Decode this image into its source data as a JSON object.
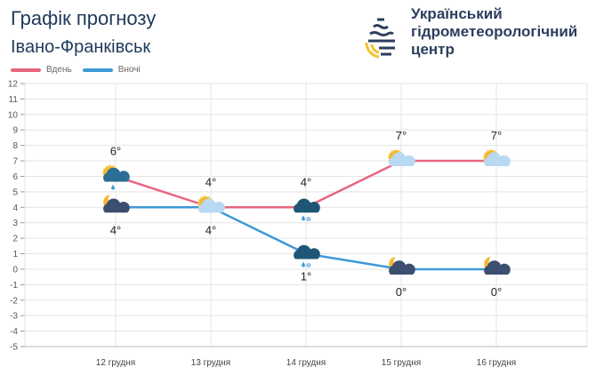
{
  "header": {
    "title": "Графік прогнозу",
    "city": "Івано-Франківськ"
  },
  "organization": {
    "line1": "Український",
    "line2": "гідрометеорологічний",
    "line3": "центр"
  },
  "colors": {
    "day": "#e8657f",
    "night": "#3d9ad8",
    "grid": "#e4e4e4"
  },
  "chart_data": {
    "type": "line",
    "title": "Графік прогнозу",
    "categories": [
      "12 грудня",
      "13 грудня",
      "14 грудня",
      "15 грудня",
      "16 грудня"
    ],
    "series": [
      {
        "name": "Вдень",
        "values": [
          6,
          4,
          4,
          7,
          7
        ],
        "labels": [
          "6°",
          "4°",
          "4°",
          "7°",
          "7°"
        ],
        "icons": [
          "sun-cloud-rain",
          "sun-cloud",
          "cloud-rain-snow",
          "sun-cloud",
          "sun-cloud"
        ]
      },
      {
        "name": "Вночі",
        "values": [
          4,
          4,
          1,
          0,
          0
        ],
        "labels": [
          "4°",
          "4°",
          "1°",
          "0°",
          "0°"
        ],
        "icons": [
          "moon-cloud",
          "sun-cloud",
          "cloud-snow-rain",
          "moon-cloud",
          "moon-cloud"
        ]
      }
    ],
    "ylim": [
      -5,
      12
    ],
    "yticks": [
      "12",
      "11",
      "10",
      "9",
      "8",
      "7",
      "6",
      "5",
      "4",
      "3",
      "2",
      "1",
      "0",
      "-1",
      "-2",
      "-3",
      "-4",
      "-5"
    ],
    "grid": true,
    "legend": "top-left"
  }
}
